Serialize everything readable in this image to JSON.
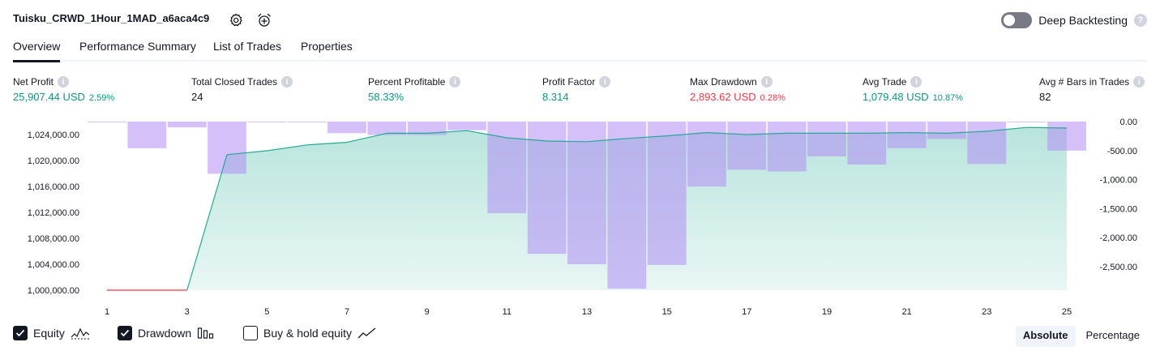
{
  "header": {
    "title": "Tuisku_CRWD_1Hour_1MAD_a6aca4c9",
    "settings_icon": "gear-icon",
    "alert_icon": "alarm-clock-plus-icon",
    "deep_backtesting_label": "Deep Backtesting",
    "deep_backtesting_on": false,
    "help_glyph": "?"
  },
  "tabs": [
    {
      "label": "Overview",
      "active": true
    },
    {
      "label": "Performance Summary",
      "active": false
    },
    {
      "label": "List of Trades",
      "active": false
    },
    {
      "label": "Properties",
      "active": false
    }
  ],
  "stats": [
    {
      "label": "Net Profit",
      "value": "25,907.44 USD",
      "pct": "2.59%",
      "tone": "green"
    },
    {
      "label": "Total Closed Trades",
      "value": "24",
      "pct": "",
      "tone": "dark"
    },
    {
      "label": "Percent Profitable",
      "value": "58.33%",
      "pct": "",
      "tone": "green"
    },
    {
      "label": "Profit Factor",
      "value": "8.314",
      "pct": "",
      "tone": "green"
    },
    {
      "label": "Max Drawdown",
      "value": "2,893.62 USD",
      "pct": "0.28%",
      "tone": "red"
    },
    {
      "label": "Avg Trade",
      "value": "1,079.48 USD",
      "pct": "10.87%",
      "tone": "green"
    },
    {
      "label": "Avg # Bars in Trades",
      "value": "82",
      "pct": "",
      "tone": "dark"
    }
  ],
  "chart_data": {
    "type": "area",
    "x_ticks": [
      "1",
      "3",
      "5",
      "7",
      "9",
      "11",
      "13",
      "15",
      "17",
      "19",
      "21",
      "23",
      "25"
    ],
    "y_left_ticks": [
      "1,000,000.00",
      "1,004,000.00",
      "1,008,000.00",
      "1,012,000.00",
      "1,016,000.00",
      "1,020,000.00",
      "1,024,000.00"
    ],
    "y_right_ticks": [
      "0.00",
      "-500.00",
      "-1,000.00",
      "-1,500.00",
      "-2,000.00",
      "-2,500.00"
    ],
    "y_left_range": [
      1000000,
      1024000
    ],
    "y_right_range": [
      -2900,
      0
    ],
    "grid": false,
    "series": [
      {
        "name": "Equity",
        "type": "area",
        "x": [
          1,
          2,
          3,
          4,
          5,
          6,
          7,
          8,
          9,
          10,
          11,
          12,
          13,
          14,
          15,
          16,
          17,
          18,
          19,
          20,
          21,
          22,
          23,
          24,
          25
        ],
        "values": [
          1000000,
          1000000,
          1000000,
          1020900,
          1021500,
          1022400,
          1022800,
          1024200,
          1024200,
          1024600,
          1023500,
          1023000,
          1022900,
          1023400,
          1023800,
          1024300,
          1024000,
          1024200,
          1024200,
          1024200,
          1024300,
          1024200,
          1024500,
          1025100,
          1025000
        ]
      },
      {
        "name": "Drawdown",
        "type": "bar",
        "x": [
          1,
          2,
          3,
          4,
          5,
          6,
          7,
          8,
          9,
          10,
          11,
          12,
          13,
          14,
          15,
          16,
          17,
          18,
          19,
          20,
          21,
          22,
          23,
          24,
          25
        ],
        "values": [
          -10,
          -460,
          -100,
          -900,
          -10,
          -10,
          -200,
          -230,
          -230,
          -150,
          -1580,
          -2280,
          -2460,
          -2880,
          -2470,
          -1120,
          -830,
          -860,
          -600,
          -740,
          -460,
          -300,
          -730,
          0,
          -500
        ]
      }
    ],
    "colors": {
      "equity_line": "#22ab94",
      "equity_line_flat": "#f23645",
      "equity_fill": "#22ab94",
      "drawdown_bar": "#b28cf5"
    }
  },
  "legend": [
    {
      "label": "Equity",
      "checked": true,
      "icon": "equity-wave-icon"
    },
    {
      "label": "Drawdown",
      "checked": true,
      "icon": "drawdown-bars-icon"
    },
    {
      "label": "Buy & hold equity",
      "checked": false,
      "icon": "buy-hold-line-icon"
    }
  ],
  "modes": [
    {
      "label": "Absolute",
      "active": true
    },
    {
      "label": "Percentage",
      "active": false
    }
  ]
}
